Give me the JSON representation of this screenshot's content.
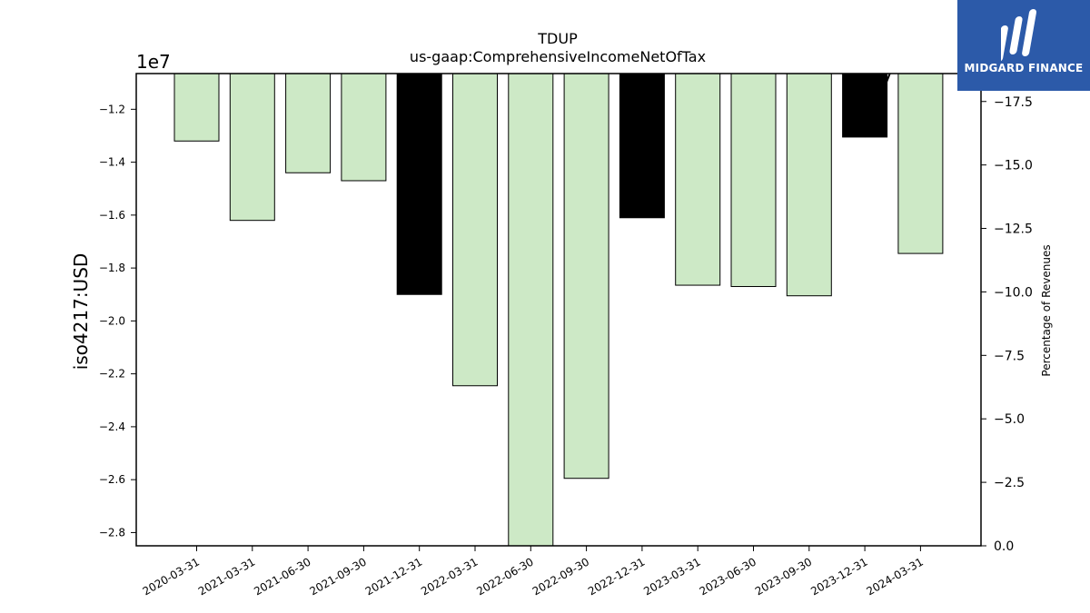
{
  "chart_data": {
    "type": "bar",
    "title": "TDUP",
    "subtitle": "us-gaap:ComprehensiveIncomeNetOfTax",
    "ylabel": "iso4217:USD",
    "y2label": "Percentage of Revenues",
    "offset_label": "1e7",
    "categories": [
      "2020-03-31",
      "2021-03-31",
      "2021-06-30",
      "2021-09-30",
      "2021-12-31",
      "2022-03-31",
      "2022-06-30",
      "2022-09-30",
      "2022-12-31",
      "2023-03-31",
      "2023-06-30",
      "2023-09-30",
      "2023-12-31",
      "2024-03-31"
    ],
    "values": [
      -13200000,
      -16200000,
      -14400000,
      -14700000,
      -19000000,
      -22450000,
      -28500000,
      -25950000,
      -16100000,
      -18650000,
      -18700000,
      -19050000,
      -13050000,
      -17450000
    ],
    "bar_colors": [
      "#cde9c6",
      "#cde9c6",
      "#cde9c6",
      "#cde9c6",
      "#000000",
      "#cde9c6",
      "#cde9c6",
      "#cde9c6",
      "#000000",
      "#cde9c6",
      "#cde9c6",
      "#cde9c6",
      "#000000",
      "#cde9c6"
    ],
    "ylim": [
      -28500000,
      -10650000
    ],
    "yticks": [
      -12000000,
      -14000000,
      -16000000,
      -18000000,
      -20000000,
      -22000000,
      -24000000,
      -26000000,
      -28000000
    ],
    "ytick_labels": [
      "−1.2",
      "−1.4",
      "−1.6",
      "−1.8",
      "−2.0",
      "−2.2",
      "−2.4",
      "−2.6",
      "−2.8"
    ],
    "y2lim": [
      0,
      -18.6
    ],
    "y2ticks": [
      -17.5,
      -15.0,
      -12.5,
      -10.0,
      -7.5,
      -5.0,
      -2.5,
      0.0
    ],
    "y2tick_labels": [
      "−17.5",
      "−15.0",
      "−12.5",
      "−10.0",
      "−7.5",
      "−5.0",
      "−2.5",
      "0.0"
    ],
    "percent_line": {
      "color": "#000000",
      "points": [
        [
          12,
          -16.1
        ],
        [
          12.45,
          -18.6
        ]
      ]
    },
    "grid": false
  },
  "logo": {
    "text": "MIDGARD FINANCE"
  }
}
